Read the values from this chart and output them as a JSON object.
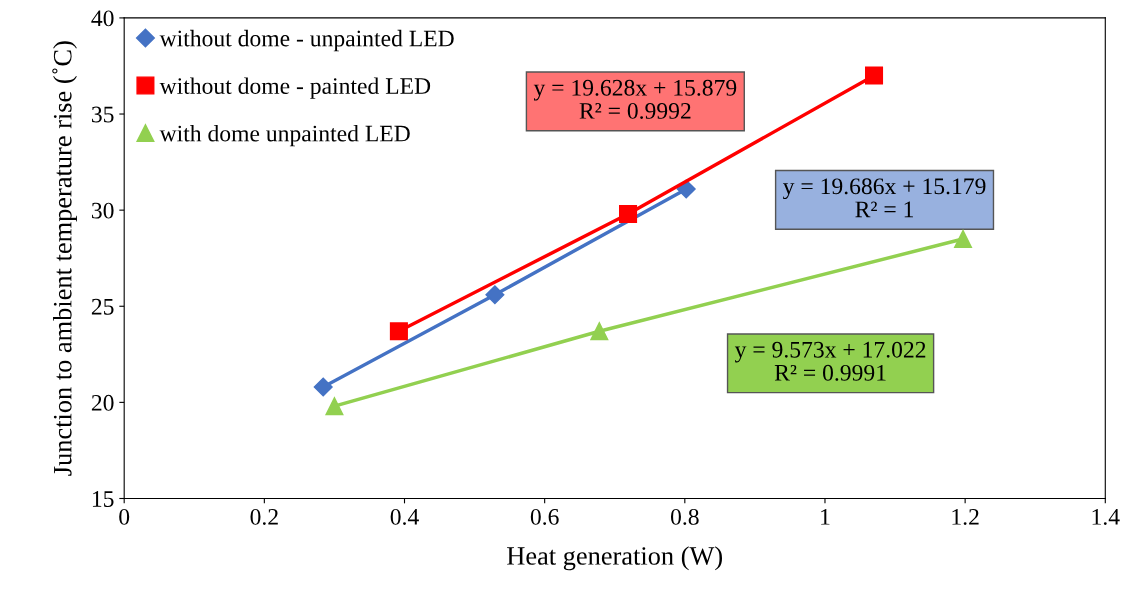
{
  "chart_data": {
    "type": "line",
    "xlabel": "Heat generation (W)",
    "ylabel": "Junction to ambient temperature rise (˚C)",
    "xlim": [
      0,
      1.4
    ],
    "xticks": [
      0,
      0.2,
      0.4,
      0.6,
      0.8,
      1,
      1.2,
      1.4
    ],
    "ylim": [
      15,
      40
    ],
    "yticks": [
      15,
      20,
      25,
      30,
      35,
      40
    ],
    "grid": false,
    "legend": "top left",
    "series": [
      {
        "name": "without dome - unpainted LED",
        "color": "#4472c4",
        "marker": "diamond",
        "x": [
          0.284,
          0.529,
          0.802
        ],
        "values": [
          20.8,
          25.6,
          31.1
        ]
      },
      {
        "name": "without dome - painted LED",
        "color": "#ff0000",
        "marker": "square",
        "x": [
          0.392,
          0.719,
          1.07
        ],
        "values": [
          23.7,
          29.8,
          37.0
        ]
      },
      {
        "name": "with dome unpainted LED",
        "color": "#92d050",
        "marker": "triangle",
        "x": [
          0.3,
          0.678,
          1.197
        ],
        "values": [
          19.8,
          23.7,
          28.5
        ]
      }
    ],
    "annotations": [
      "y = 19.686x + 15.179\nR² = 1",
      "y = 19.628x + 15.879\nR² = 0.9992",
      "y = 9.573x + 17.022\nR² = 0.9991"
    ]
  }
}
